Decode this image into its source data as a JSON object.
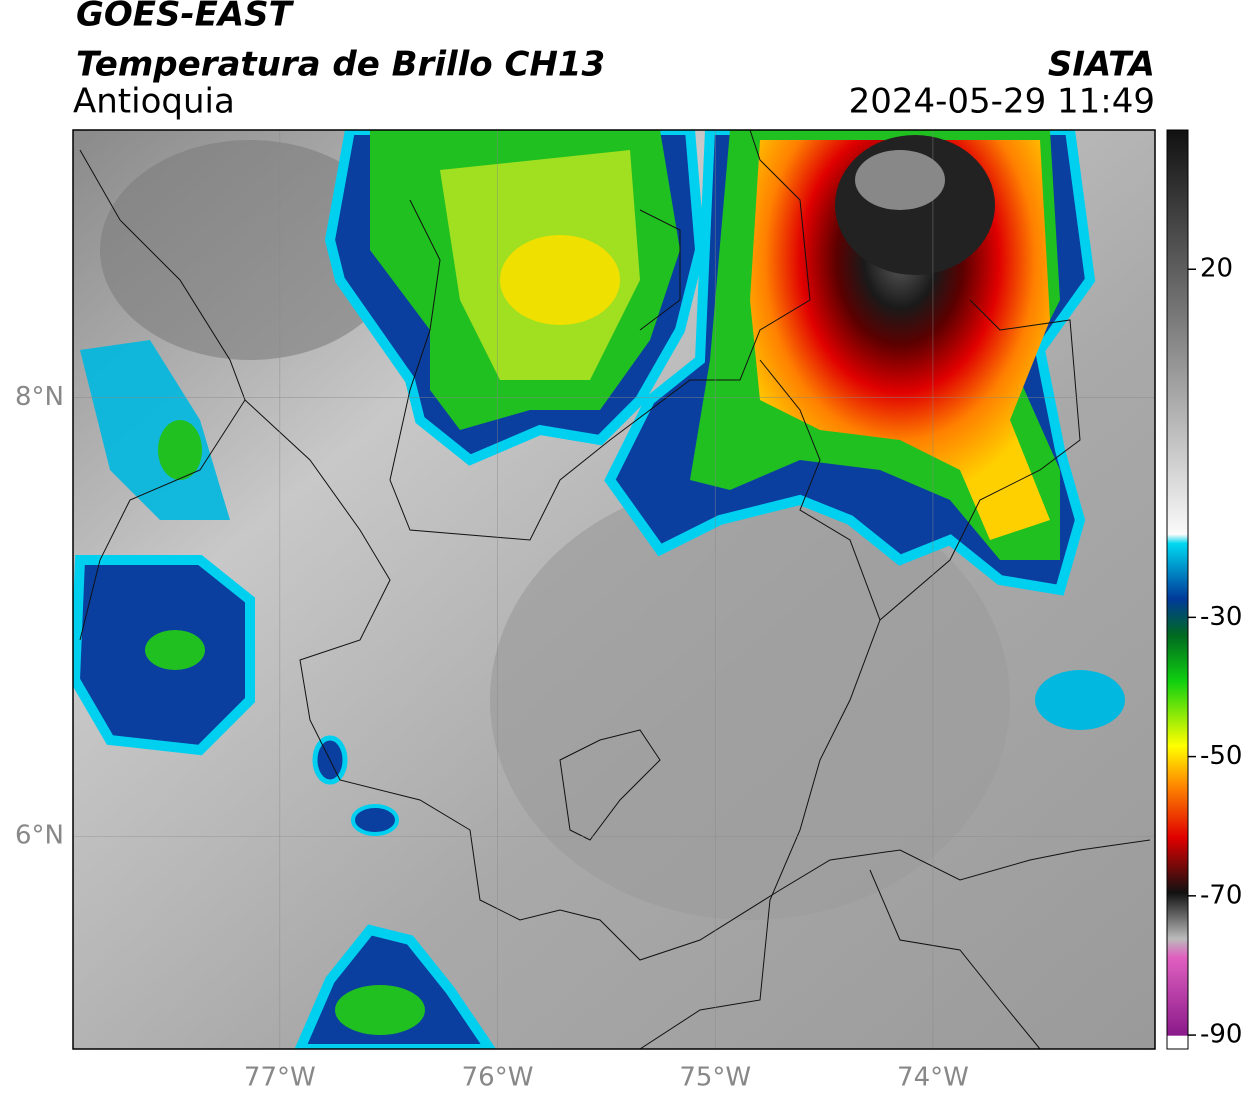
{
  "header": {
    "title": "GOES-EAST",
    "subtitle": "Temperatura de Brillo CH13",
    "region": "Antioquia",
    "source": "SIATA",
    "datetime": "2024-05-29 11:49"
  },
  "map": {
    "lon_range": [
      -77.95,
      -72.98
    ],
    "lat_range": [
      5.03,
      9.22
    ],
    "grid": true,
    "lon_ticks": [
      {
        "value": -77,
        "label": "77°W"
      },
      {
        "value": -76,
        "label": "76°W"
      },
      {
        "value": -75,
        "label": "75°W"
      },
      {
        "value": -74,
        "label": "74°W"
      }
    ],
    "lat_ticks": [
      {
        "value": 8,
        "label": "8°N"
      },
      {
        "value": 6,
        "label": "6°N"
      }
    ]
  },
  "colorbar": {
    "range": [
      40,
      -92
    ],
    "ticks": [
      20,
      -30,
      -50,
      -70,
      -90
    ]
  }
}
